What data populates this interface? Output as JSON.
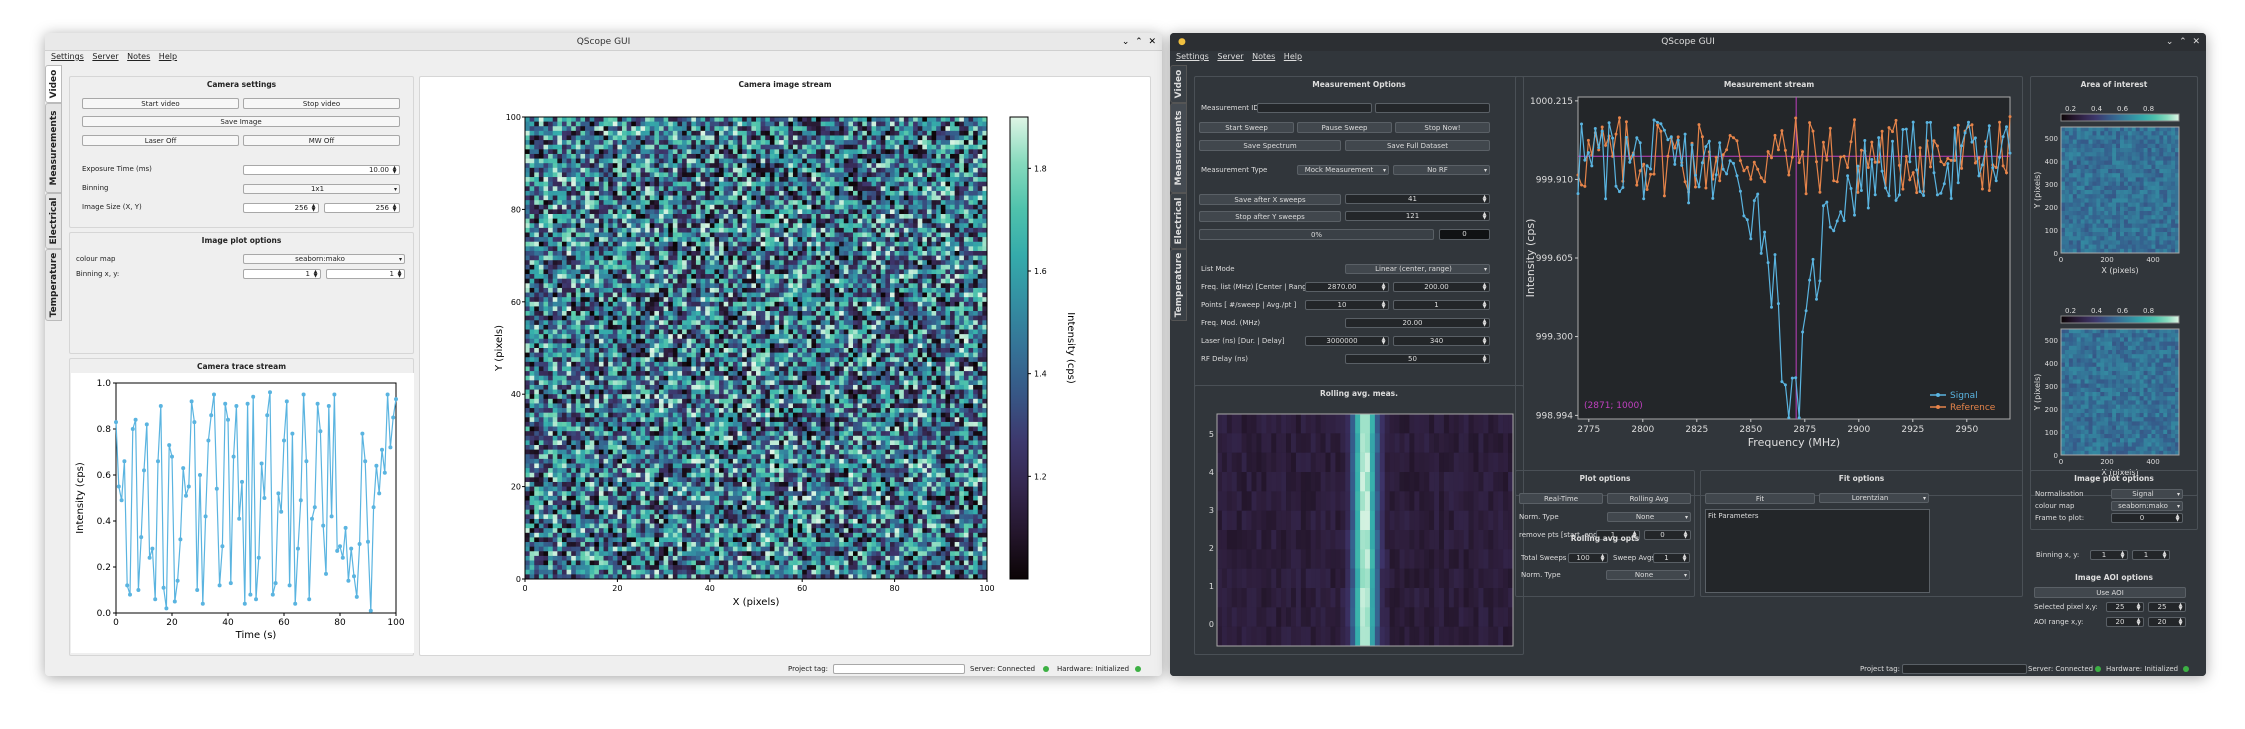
{
  "left": {
    "title": "QScope GUI",
    "menu": [
      "Settings",
      "Server",
      "Notes",
      "Help"
    ],
    "tabs": [
      "Video",
      "Measurements",
      "Electrical",
      "Temperature"
    ],
    "camera_settings": {
      "title": "Camera settings",
      "start_video": "Start video",
      "stop_video": "Stop video",
      "save_image": "Save Image",
      "laser_off": "Laser Off",
      "mw_off": "MW Off",
      "exposure_label": "Exposure Time (ms)",
      "exposure_value": "10.00",
      "binning_label": "Binning",
      "binning_value": "1x1",
      "image_size_label": "Image Size (X, Y)",
      "size_x": "256",
      "size_y": "256"
    },
    "image_plot": {
      "title": "Image plot options",
      "cmap_label": "colour map",
      "cmap_value": "seaborn:mako",
      "binning_label": "Binning x, y:",
      "bin_x": "1",
      "bin_y": "1"
    },
    "trace": {
      "title": "Camera trace stream",
      "xlabel": "Time (s)",
      "ylabel": "Intensity (cps)"
    },
    "image_stream": {
      "title": "Camera image stream",
      "xlabel": "X (pixels)",
      "ylabel": "Y (pixels)",
      "cbar_label": "Intensity (cps)"
    },
    "status": {
      "project_tag": "Project tag:",
      "server": "Server: Connected",
      "hardware": "Hardware: Initialized"
    }
  },
  "right": {
    "title": "QScope GUI",
    "menu": [
      "Settings",
      "Server",
      "Notes",
      "Help"
    ],
    "tabs": [
      "Video",
      "Measurements",
      "Electrical",
      "Temperature"
    ],
    "meas_options": {
      "title": "Measurement Options",
      "meas_id_label": "Measurement ID",
      "start_sweep": "Start Sweep",
      "pause_sweep": "Pause Sweep",
      "stop_now": "Stop Now!",
      "save_spectrum": "Save Spectrum",
      "save_full": "Save Full Dataset",
      "meas_type_label": "Measurement Type",
      "meas_type_value": "Mock Measurement",
      "rf_value": "No RF",
      "save_after": "Save after X sweeps",
      "save_after_value": "41",
      "stop_after": "Stop after Y sweeps",
      "stop_after_value": "121",
      "progress": "0%",
      "progress_count": "0",
      "list_mode_label": "List Mode",
      "list_mode_value": "Linear (center, range)",
      "freq_label": "Freq. list (MHz) [Center | Range]",
      "freq_center": "2870.00",
      "freq_range": "200.00",
      "points_label": "Points [ #/sweep | Avg./pt ]",
      "points": "10",
      "avg": "1",
      "freq_mod_label": "Freq. Mod. (MHz)",
      "freq_mod": "20.00",
      "laser_label": "Laser (ns) [Dur. | Delay]",
      "laser_dur": "3000000",
      "laser_delay": "340",
      "rf_delay_label": "RF Delay (ns)",
      "rf_delay": "50"
    },
    "rolling": {
      "title": "Rolling avg. meas."
    },
    "stream": {
      "title": "Measurement stream",
      "xlabel": "Frequency (MHz)",
      "ylabel": "Intensity (cps)",
      "cursor": "(2871; 1000)",
      "legend": [
        "Signal",
        "Reference"
      ]
    },
    "aoi": {
      "title": "Area of interest",
      "xlabel": "X (pixels)",
      "ylabel": "Y (pixels)"
    },
    "plot_options": {
      "title": "Plot options",
      "real_time": "Real-Time",
      "rolling_avg": "Rolling Avg",
      "norm_label": "Norm. Type",
      "norm_value": "None",
      "remove_label": "remove pts [start, end]",
      "remove_start": "1",
      "remove_end": "0"
    },
    "rolling_opts": {
      "title": "Rolling avg opts",
      "total_label": "Total Sweeps",
      "total": "100",
      "sweep_avgs_label": "Sweep Avgs",
      "sweep_avgs": "1",
      "norm_label": "Norm. Type",
      "norm_value": "None"
    },
    "fit_options": {
      "title": "Fit options",
      "fit": "Fit",
      "model": "Lorentzian",
      "params": "Fit Parameters"
    },
    "img_plot": {
      "title": "Image plot options",
      "norm_label": "Normalisation",
      "norm_value": "Signal",
      "cmap_label": "colour map",
      "cmap_value": "seaborn:mako",
      "frame_label": "Frame to plot:",
      "frame": "0",
      "binning_label": "Binning x, y:",
      "bin_x": "1",
      "bin_y": "1"
    },
    "aoi_opts": {
      "title": "Image AOI options",
      "use_aoi": "Use AOI",
      "sel_label": "Selected pixel x,y:",
      "sel_x": "25",
      "sel_y": "25",
      "range_label": "AOI range x,y:",
      "range_x": "20",
      "range_y": "20"
    },
    "status": {
      "project_tag": "Project tag:",
      "server": "Server: Connected",
      "hardware": "Hardware: Initialized"
    }
  },
  "chart_data": [
    {
      "type": "line",
      "title": "Camera trace stream",
      "xlabel": "Time (s)",
      "ylabel": "Intensity (cps)",
      "xlim": [
        0,
        100
      ],
      "ylim": [
        0,
        1
      ],
      "x_ticks": [
        0,
        20,
        40,
        60,
        80,
        100
      ],
      "y_ticks": [
        0.0,
        0.2,
        0.4,
        0.6,
        0.8,
        1.0
      ],
      "color": "#5ab4e0",
      "series": [
        {
          "values": [
            0.83,
            0.55,
            0.49,
            0.66,
            0.12,
            0.08,
            0.8,
            0.84,
            0.1,
            0.33,
            0.62,
            0.82,
            0.24,
            0.28,
            0.06,
            0.66,
            0.9,
            0.11,
            0.02,
            0.73,
            0.68,
            0.05,
            0.14,
            0.32,
            0.63,
            0.51,
            0.55,
            0.92,
            0.83,
            0.1,
            0.6,
            0.04,
            0.42,
            0.75,
            0.86,
            0.95,
            0.54,
            0.12,
            0.29,
            0.91,
            0.84,
            0.13,
            0.68,
            0.9,
            0.41,
            0.57,
            0.04,
            0.91,
            0.08,
            0.94,
            0.06,
            0.24,
            0.65,
            0.5,
            0.86,
            0.96,
            0.08,
            0.13,
            0.52,
            0.44,
            0.75,
            0.92,
            0.12,
            0.78,
            0.04,
            0.28,
            0.49,
            0.95,
            0.66,
            0.06,
            0.41,
            0.46,
            0.91,
            0.79,
            0.38,
            0.17,
            0.9,
            0.42,
            0.95,
            0.27,
            0.29,
            0.24,
            0.37,
            0.14,
            0.28,
            0.16,
            0.07,
            0.3,
            0.78,
            0.66,
            0.31,
            0.01,
            0.46,
            0.64,
            0.52,
            0.71,
            0.61,
            0.95,
            0.72,
            0.85,
            0.93
          ]
        }
      ]
    },
    {
      "type": "heatmap",
      "title": "Camera image stream",
      "xlabel": "X (pixels)",
      "ylabel": "Y (pixels)",
      "xlim": [
        0,
        100
      ],
      "ylim": [
        0,
        100
      ],
      "x_ticks": [
        0,
        20,
        40,
        60,
        80,
        100
      ],
      "y_ticks": [
        0,
        20,
        40,
        60,
        80,
        100
      ],
      "colorbar": {
        "label": "Intensity (cps)",
        "ticks": [
          1.2,
          1.4,
          1.6,
          1.8
        ],
        "range": [
          1.0,
          1.9
        ],
        "colormap": "seaborn:mako"
      },
      "grid_size": [
        100,
        100
      ],
      "distribution": "uniform random noise"
    },
    {
      "type": "line",
      "title": "Measurement stream",
      "xlabel": "Frequency (MHz)",
      "ylabel": "Intensity (cps)",
      "xlim": [
        2770,
        2970
      ],
      "ylim": [
        998.98,
        1000.23
      ],
      "x_ticks": [
        2775,
        2800,
        2825,
        2850,
        2875,
        2900,
        2925,
        2950
      ],
      "y_ticks": [
        998.994,
        999.3,
        999.605,
        999.91,
        1000.215
      ],
      "cursor": {
        "x": 2871,
        "y": 1000
      },
      "series": [
        {
          "name": "Signal",
          "color": "#5ab4e0",
          "model": "lorentzian_dip",
          "center": 2870,
          "width": 9,
          "depth": 1.0,
          "baseline": 1000.0,
          "noise": 0.1
        },
        {
          "name": "Reference",
          "color": "#e6844a",
          "model": "flat",
          "baseline": 1000.0,
          "noise": 0.1
        }
      ]
    },
    {
      "type": "heatmap",
      "title": "Rolling avg. meas.",
      "y_ticks": [
        0,
        1,
        2,
        3,
        4,
        5
      ],
      "bright_band_fraction": 0.5,
      "colormap": "seaborn:mako"
    },
    {
      "type": "heatmap",
      "title": "Area of interest",
      "xlabel": "X (pixels)",
      "ylabel": "Y (pixels)",
      "x_ticks": [
        0,
        200,
        400
      ],
      "y_ticks": [
        0,
        100,
        200,
        300,
        400,
        500
      ],
      "colorbar_ticks": [
        0.2,
        0.4,
        0.6,
        0.8
      ],
      "panels": 2
    }
  ]
}
